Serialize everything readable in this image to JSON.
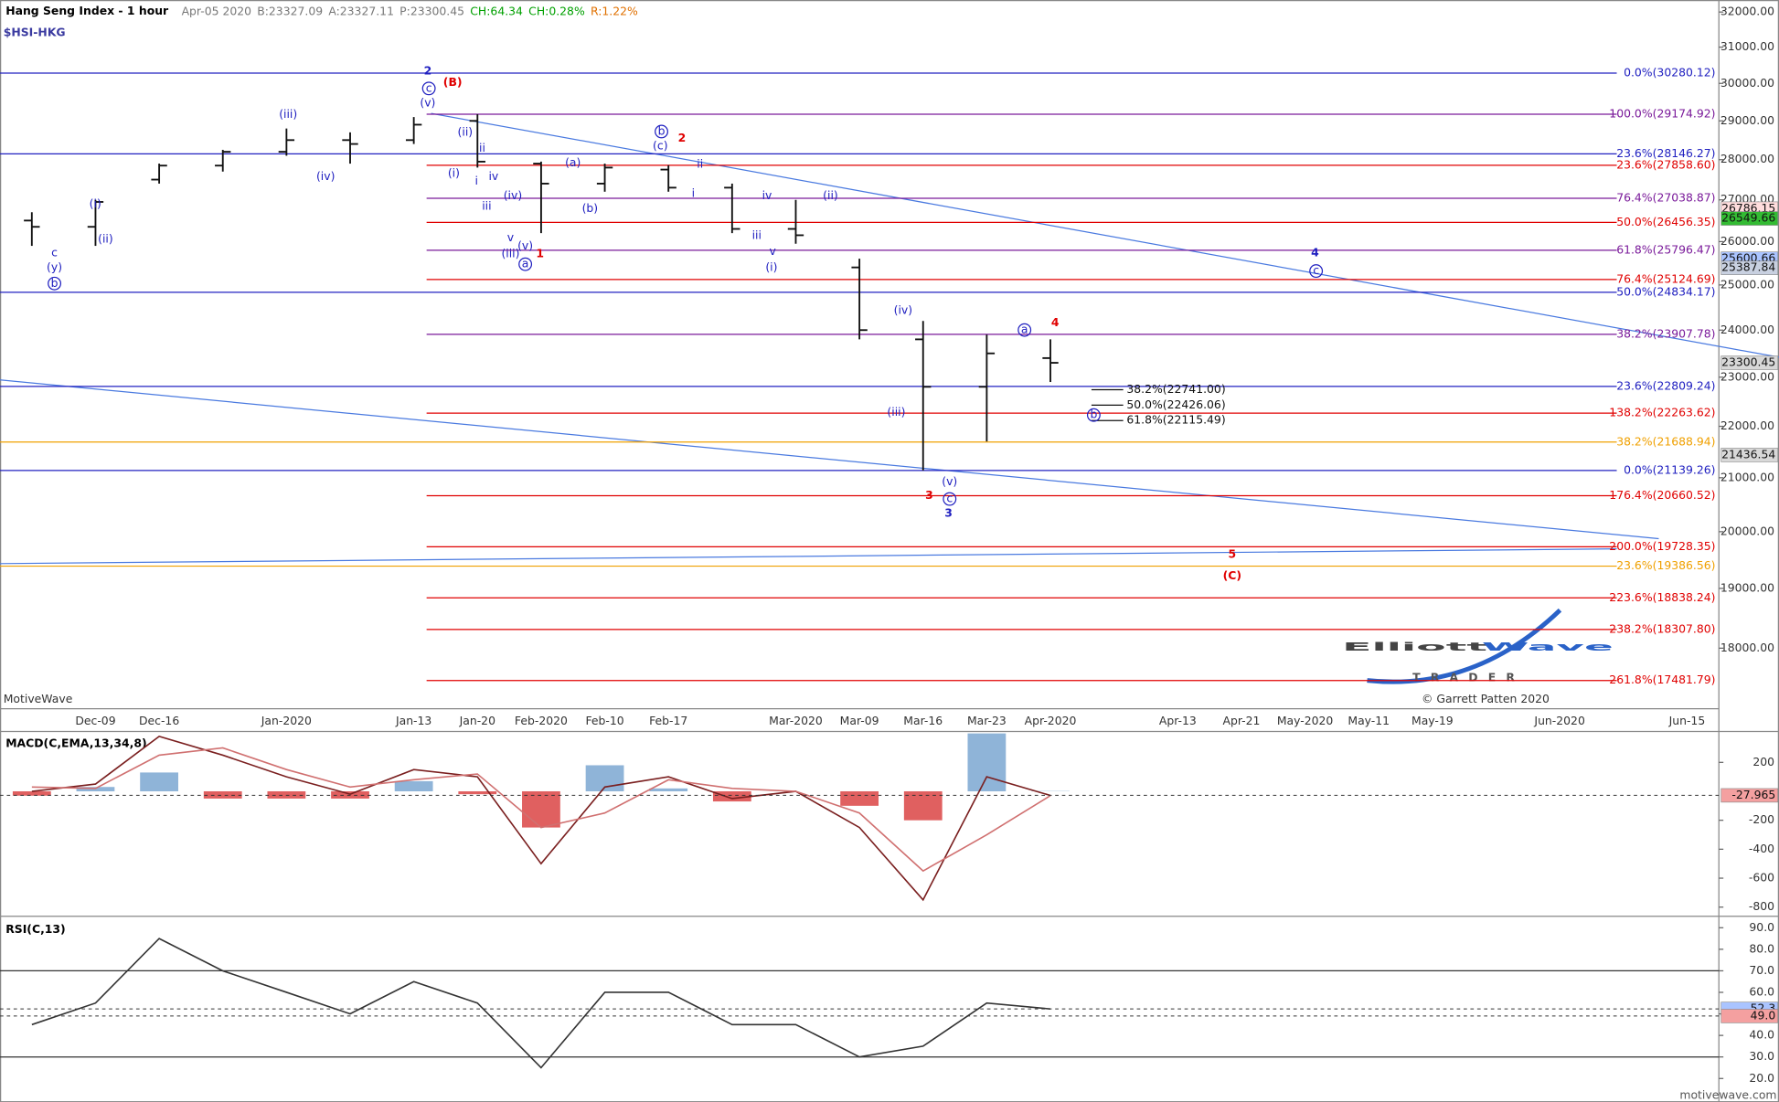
{
  "chart_data": [
    {
      "type": "ohlc",
      "title": "Hang Seng Index - 1 hour",
      "symbol": "$HSI-HKG",
      "quote": [
        "Apr-05 2020",
        "B:23327.09",
        "A:23327.11",
        "P:23300.45",
        "CH:64.34",
        "CH:0.28%",
        "R:1.22%"
      ],
      "quote_colors": [
        "#777777",
        "#777777",
        "#777777",
        "#777777",
        "#00a000",
        "#00a000",
        "#e07000"
      ],
      "color": "#111111",
      "log": true,
      "categories": [
        null,
        "Dec-09",
        "Dec-16",
        null,
        "Jan-2020",
        null,
        "Jan-13",
        "Jan-20",
        "Feb-2020",
        "Feb-10",
        "Feb-17",
        null,
        "Mar-2020",
        "Mar-09",
        "Mar-16",
        "Mar-23",
        "Apr-2020",
        null,
        "Apr-13",
        "Apr-21",
        "May-2020",
        "May-11",
        "May-19",
        null,
        "Jun-2020",
        null,
        "Jun-15"
      ],
      "open": [
        26500,
        26350,
        27500,
        27850,
        28200,
        28500,
        28500,
        29000,
        27900,
        27400,
        27750,
        27300,
        26300,
        25400,
        23800,
        22800,
        23400,
        null,
        null,
        null,
        null,
        null,
        null,
        null,
        null,
        null,
        null
      ],
      "high": [
        26700,
        27000,
        27900,
        28250,
        28800,
        28700,
        29100,
        29175,
        27950,
        27900,
        27860,
        27400,
        27000,
        25600,
        24200,
        23900,
        23800,
        null,
        null,
        null,
        null,
        null,
        null,
        null,
        null,
        null,
        null
      ],
      "low": [
        25900,
        25900,
        27400,
        27700,
        28100,
        27900,
        28400,
        27800,
        26200,
        27200,
        27200,
        26200,
        25950,
        23800,
        21139,
        21700,
        22900,
        null,
        null,
        null,
        null,
        null,
        null,
        null,
        null,
        null,
        null
      ],
      "close": [
        26350,
        26950,
        27850,
        28200,
        28500,
        28400,
        28900,
        27950,
        27400,
        27800,
        27300,
        26300,
        26150,
        24000,
        22800,
        23500,
        23300.45,
        null,
        null,
        null,
        null,
        null,
        null,
        null,
        null,
        null,
        null
      ],
      "ylim": [
        17040,
        32350
      ],
      "yticks": [
        {
          "value": 18000,
          "label": "18000.00"
        },
        {
          "value": 19000,
          "label": "19000.00"
        },
        {
          "value": 20000,
          "label": "20000.00"
        },
        {
          "value": 21000,
          "label": "21000.00"
        },
        {
          "value": 22000,
          "label": "22000.00"
        },
        {
          "value": 23000,
          "label": "23000.00"
        },
        {
          "value": 24000,
          "label": "24000.00"
        },
        {
          "value": 25000,
          "label": "25000.00"
        },
        {
          "value": 26000,
          "label": "26000.00"
        },
        {
          "value": 27000,
          "label": "27000.00"
        },
        {
          "value": 28000,
          "label": "28000.00"
        },
        {
          "value": 29000,
          "label": "29000.00"
        },
        {
          "value": 30000,
          "label": "30000.00"
        },
        {
          "value": 31000,
          "label": "31000.00"
        },
        {
          "value": 32000,
          "label": "32000.00"
        }
      ],
      "levels": [
        {
          "value": 30280.12,
          "label": "0.0%(30280.12)",
          "color": "#2020c0"
        },
        {
          "value": 29174.92,
          "label": "100.0%(29174.92)",
          "color": "#7a1a9a"
        },
        {
          "value": 28146.27,
          "label": "23.6%(28146.27)",
          "color": "#2020c0"
        },
        {
          "value": 27858.6,
          "label": "23.6%(27858.60)",
          "color": "#e00000"
        },
        {
          "value": 27038.87,
          "label": "76.4%(27038.87)",
          "color": "#7a1a9a"
        },
        {
          "value": 26456.35,
          "label": "50.0%(26456.35)",
          "color": "#e00000"
        },
        {
          "value": 25796.47,
          "label": "61.8%(25796.47)",
          "color": "#7a1a9a"
        },
        {
          "value": 25124.69,
          "label": "76.4%(25124.69)",
          "color": "#e00000"
        },
        {
          "value": 24834.17,
          "label": "50.0%(24834.17)",
          "color": "#2020c0"
        },
        {
          "value": 23907.78,
          "label": "38.2%(23907.78)",
          "color": "#7a1a9a"
        },
        {
          "value": 22809.24,
          "label": "23.6%(22809.24)",
          "color": "#2020c0"
        },
        {
          "value": 22263.62,
          "label": "138.2%(22263.62)",
          "color": "#e00000"
        },
        {
          "value": 21688.94,
          "label": "38.2%(21688.94)",
          "color": "#f0a000"
        },
        {
          "value": 21139.26,
          "label": "0.0%(21139.26)",
          "color": "#2020c0"
        },
        {
          "value": 20660.52,
          "label": "176.4%(20660.52)",
          "color": "#e00000"
        },
        {
          "value": 19728.35,
          "label": "200.0%(19728.35)",
          "color": "#e00000"
        },
        {
          "value": 19386.56,
          "label": "23.6%(19386.56)",
          "color": "#f0a000"
        },
        {
          "value": 18838.24,
          "label": "223.6%(18838.24)",
          "color": "#e00000"
        },
        {
          "value": 18307.8,
          "label": "238.2%(18307.80)",
          "color": "#e00000"
        },
        {
          "value": 17481.79,
          "label": "261.8%(17481.79)",
          "color": "#e00000"
        }
      ],
      "retracements": [
        {
          "value": 22741.0,
          "label": "38.2%(22741.00)"
        },
        {
          "value": 22426.06,
          "label": "50.0%(22426.06)"
        },
        {
          "value": 22115.49,
          "label": "61.8%(22115.49)"
        }
      ],
      "markers": [
        26786.15,
        26549.66,
        25600.66,
        25387.84,
        23300.45,
        21436.54
      ],
      "marker_colors": [
        "#ffdddd",
        "#33bb33",
        "#aac4ff",
        "#c8d0e0",
        "#d8d8d8",
        "#d8d8d8"
      ],
      "wave_labels": [
        {
          "text": "2",
          "color": "#2020c0",
          "bold": true
        },
        {
          "text": "c",
          "color": "#2020c0",
          "circled": true
        },
        {
          "text": "(B)",
          "color": "#e00000",
          "bold": true
        },
        {
          "text": "(v)",
          "color": "#2020c0"
        },
        {
          "text": "(iii)",
          "color": "#2020c0"
        },
        {
          "text": "(ii)",
          "color": "#2020c0"
        },
        {
          "text": "ii",
          "color": "#2020c0"
        },
        {
          "text": "(i)",
          "color": "#2020c0"
        },
        {
          "text": "i",
          "color": "#2020c0"
        },
        {
          "text": "iv",
          "color": "#2020c0"
        },
        {
          "text": "(iv)",
          "color": "#2020c0"
        },
        {
          "text": "(iv)",
          "color": "#2020c0"
        },
        {
          "text": "iii",
          "color": "#2020c0"
        },
        {
          "text": "v",
          "color": "#2020c0"
        },
        {
          "text": "(v)",
          "color": "#2020c0"
        },
        {
          "text": "(iii)",
          "color": "#2020c0"
        },
        {
          "text": "a",
          "color": "#2020c0",
          "circled": true
        },
        {
          "text": "1",
          "color": "#e00000",
          "bold": true
        },
        {
          "text": "(a)",
          "color": "#2020c0"
        },
        {
          "text": "(b)",
          "color": "#2020c0"
        },
        {
          "text": "b",
          "color": "#2020c0",
          "circled": true
        },
        {
          "text": "(c)",
          "color": "#2020c0"
        },
        {
          "text": "2",
          "color": "#e00000",
          "bold": true
        },
        {
          "text": "ii",
          "color": "#2020c0"
        },
        {
          "text": "i",
          "color": "#2020c0"
        },
        {
          "text": "iv",
          "color": "#2020c0"
        },
        {
          "text": "iii",
          "color": "#2020c0"
        },
        {
          "text": "v",
          "color": "#2020c0"
        },
        {
          "text": "(i)",
          "color": "#2020c0"
        },
        {
          "text": "(ii)",
          "color": "#2020c0"
        },
        {
          "text": "(iv)",
          "color": "#2020c0"
        },
        {
          "text": "(iii)",
          "color": "#2020c0"
        },
        {
          "text": "(v)",
          "color": "#2020c0"
        },
        {
          "text": "3",
          "color": "#e00000",
          "bold": true
        },
        {
          "text": "c",
          "color": "#2020c0",
          "circled": true
        },
        {
          "text": "3",
          "color": "#2020c0",
          "bold": true
        },
        {
          "text": "a",
          "color": "#2020c0",
          "circled": true
        },
        {
          "text": "4",
          "color": "#e00000",
          "bold": true
        },
        {
          "text": "b",
          "color": "#2020c0",
          "circled": true
        },
        {
          "text": "4",
          "color": "#2020c0",
          "bold": true
        },
        {
          "text": "c",
          "color": "#2020c0",
          "circled": true
        },
        {
          "text": "5",
          "color": "#e00000",
          "bold": true
        },
        {
          "text": "(C)",
          "color": "#e00000",
          "bold": true
        },
        {
          "text": "(i)",
          "color": "#2020c0"
        },
        {
          "text": "(ii)",
          "color": "#2020c0"
        },
        {
          "text": "c",
          "color": "#2020c0"
        },
        {
          "text": "(y)",
          "color": "#2020c0"
        },
        {
          "text": "b",
          "color": "#2020c0",
          "circled": true
        }
      ]
    },
    {
      "type": "line",
      "title": "MACD(C,EMA,13,34,8)",
      "series": [
        {
          "name": "MACD",
          "color": "#7a1f1f",
          "values": [
            0,
            50,
            380,
            250,
            100,
            -20,
            150,
            100,
            -500,
            30,
            100,
            -50,
            0,
            -250,
            -750,
            100,
            -27.965,
            null,
            null,
            null,
            null,
            null,
            null,
            null,
            null,
            null,
            null
          ]
        },
        {
          "name": "Signal",
          "color": "#d07070",
          "values": [
            30,
            20,
            250,
            300,
            150,
            30,
            80,
            120,
            -250,
            -150,
            80,
            20,
            0,
            -150,
            -550,
            -300,
            -30,
            null,
            null,
            null,
            null,
            null,
            null,
            null,
            null,
            null,
            null
          ]
        }
      ],
      "histogram": [
        -30,
        30,
        130,
        -50,
        -50,
        -50,
        70,
        -20,
        -250,
        180,
        20,
        -70,
        0,
        -100,
        -200,
        400,
        2,
        null,
        null,
        null,
        null,
        null,
        null,
        null,
        null,
        null,
        null
      ],
      "histogram_colors": [
        "#8fb4d8",
        "#e06060"
      ],
      "ylim": [
        -840,
        390
      ],
      "yticks": [
        200,
        -200,
        -400,
        -600,
        -800
      ],
      "markers": [
        -27.965
      ],
      "marker_colors": [
        "#f4a0a0"
      ]
    },
    {
      "type": "line",
      "title": "RSI(C,13)",
      "series": [
        {
          "name": "RSI",
          "color": "#333333",
          "values": [
            45,
            55,
            85,
            70,
            60,
            50,
            65,
            55,
            25,
            60,
            60,
            45,
            45,
            30,
            35,
            55,
            52.3,
            null,
            null,
            null,
            null,
            null,
            null,
            null,
            null,
            null,
            null
          ]
        }
      ],
      "ylim": [
        10,
        93.2
      ],
      "yticks": [
        {
          "value": 20,
          "label": "20.0"
        },
        {
          "value": 30,
          "label": "30.0"
        },
        {
          "value": 40,
          "label": "40.0"
        },
        {
          "value": 50,
          "label": "50.0"
        },
        {
          "value": 60,
          "label": "60.0"
        },
        {
          "value": 70,
          "label": "70.0"
        },
        {
          "value": 80,
          "label": "80.0"
        },
        {
          "value": 90,
          "label": "90.0"
        }
      ],
      "hlines": [
        70,
        30
      ],
      "markers": [
        52.3,
        {
          "value": 49,
          "label": "49.0"
        }
      ],
      "marker_colors": [
        "#aac4ff",
        "#f4a0a0"
      ]
    }
  ],
  "footer": {
    "source": "MotiveWave",
    "logo_1": "Elliott",
    "logo_2": "Wave",
    "logo_3": "TRADER",
    "copyright": "© Garrett Patten 2020",
    "site": "motivewave.com"
  }
}
